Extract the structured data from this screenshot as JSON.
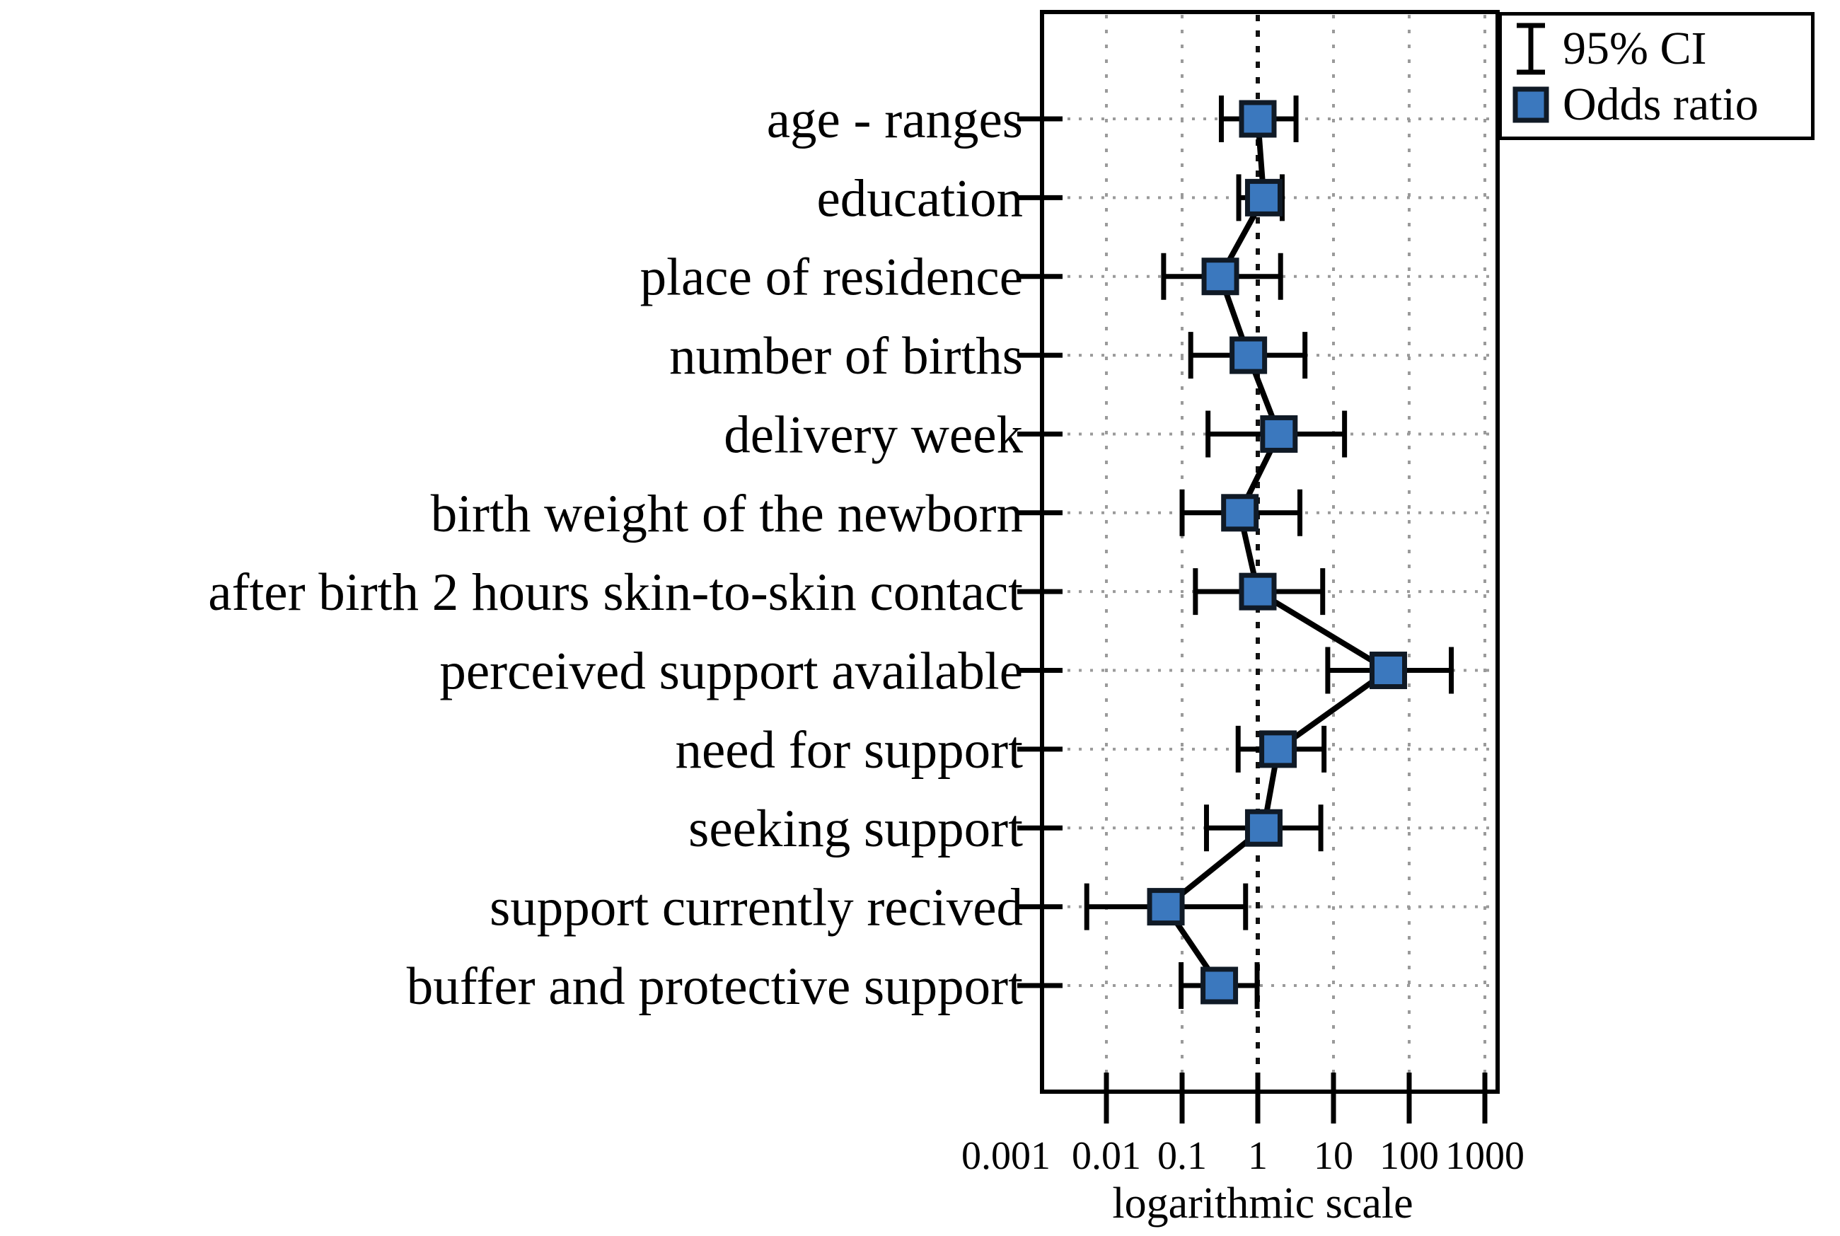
{
  "chart_data": {
    "type": "scatter",
    "subtype": "forest-plot-odds-ratio-with-95ci",
    "title": "",
    "xlabel": "logarithmic scale",
    "ylabel": "",
    "x_scale": "log",
    "x_range": [
      0.0014,
      1480
    ],
    "reference_line_x": 1,
    "grid": true,
    "x_ticks": [
      0.001,
      0.01,
      0.1,
      1,
      10,
      100,
      1000
    ],
    "x_tick_labels": [
      "0.001",
      "0.01",
      "0.1",
      "1",
      "10",
      "100",
      "1000"
    ],
    "categories": [
      "age - ranges",
      "education",
      "place of residence",
      "number of births",
      "delivery week",
      "birth weight of the newborn",
      "after birth 2 hours skin-to-skin contact",
      "perceived support available",
      "need for support",
      "seeking support",
      "support currently recived",
      "buffer and protective support"
    ],
    "points": [
      {
        "label": "age - ranges",
        "or": 1.0,
        "ci_low": 0.33,
        "ci_high": 3.2
      },
      {
        "label": "education",
        "or": 1.2,
        "ci_low": 0.56,
        "ci_high": 2.1
      },
      {
        "label": "place of residence",
        "or": 0.32,
        "ci_low": 0.057,
        "ci_high": 2.0
      },
      {
        "label": "number of births",
        "or": 0.75,
        "ci_low": 0.13,
        "ci_high": 4.2
      },
      {
        "label": "delivery week",
        "or": 1.9,
        "ci_low": 0.22,
        "ci_high": 14
      },
      {
        "label": "birth weight of the newborn",
        "or": 0.58,
        "ci_low": 0.1,
        "ci_high": 3.6
      },
      {
        "label": "after birth 2 hours skin-to-skin contact",
        "or": 1.0,
        "ci_low": 0.15,
        "ci_high": 7.2
      },
      {
        "label": "perceived support available",
        "or": 53,
        "ci_low": 8.4,
        "ci_high": 360
      },
      {
        "label": "need for support",
        "or": 1.85,
        "ci_low": 0.55,
        "ci_high": 7.5
      },
      {
        "label": "seeking support",
        "or": 1.2,
        "ci_low": 0.21,
        "ci_high": 6.8
      },
      {
        "label": "support currently recived",
        "or": 0.061,
        "ci_low": 0.0055,
        "ci_high": 0.69
      },
      {
        "label": "buffer and protective support",
        "or": 0.31,
        "ci_low": 0.097,
        "ci_high": 0.98
      }
    ],
    "legend": [
      {
        "label": "95% CI",
        "icon": "error-bar-icon"
      },
      {
        "label": "Odds ratio",
        "icon": "odds-ratio-marker-icon"
      }
    ],
    "legend_position": "top-right",
    "colors": {
      "marker_fill": "#3B78BE",
      "marker_stroke": "#101A26",
      "series_line": "#000000",
      "grid": "#9a9a9a",
      "reference_line": "#111111",
      "axis": "#000000",
      "background": "#ffffff"
    }
  }
}
